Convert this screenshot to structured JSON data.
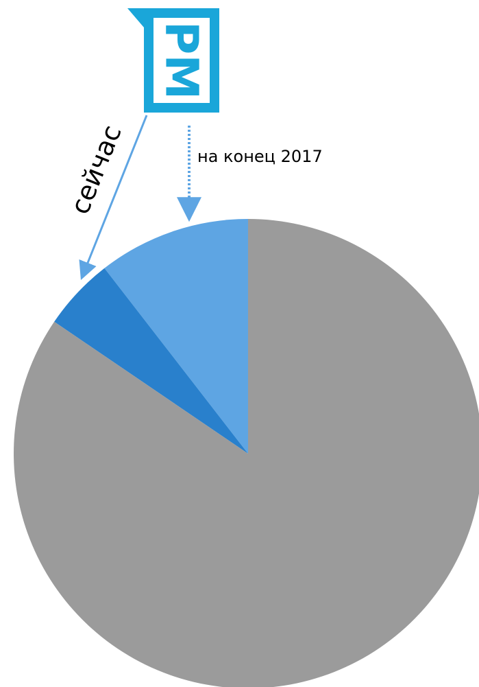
{
  "chart_data": {
    "type": "pie",
    "start": "12 o'clock",
    "direction": "counterclockwise",
    "slices": [
      {
        "label": "на конец 2017",
        "value": 10.5,
        "color": "#5ea5e3"
      },
      {
        "label": "сейчас",
        "value": 5,
        "color": "#2980cc"
      },
      {
        "label": "",
        "value": 84.5,
        "color": "#9b9b9b"
      }
    ]
  },
  "annotations": {
    "now_label": "сейчас",
    "end2017_label": "на конец 2017"
  },
  "logo": {
    "name": "pm-logo",
    "text": "PM",
    "frame_color": "#1aa6d9",
    "inner_color": "#ffffff"
  },
  "colors": {
    "arrow_solid": "#5ea5e3",
    "arrow_dotted": "#5ea5e3"
  }
}
